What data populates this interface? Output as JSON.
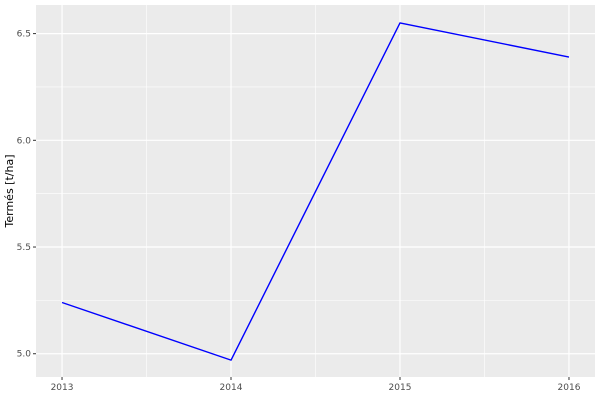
{
  "chart_data": {
    "type": "line",
    "title": "",
    "xlabel": "",
    "ylabel": "Termés [t/ha]",
    "x": [
      2013,
      2014,
      2015,
      2016
    ],
    "series": [
      {
        "name": "Termés",
        "values": [
          5.24,
          4.97,
          6.55,
          6.39
        ]
      }
    ],
    "x_ticks": [
      2013,
      2014,
      2015,
      2016
    ],
    "x_tick_labels": [
      "2013",
      "2014",
      "2015",
      "2016"
    ],
    "y_ticks": [
      5.0,
      5.5,
      6.0,
      6.5
    ],
    "y_tick_labels": [
      "5.0",
      "5.5",
      "6.0",
      "6.5"
    ],
    "x_minor_ticks": [
      2013.5,
      2014.5,
      2015.5
    ],
    "y_minor_ticks": [
      5.25,
      5.75,
      6.25
    ],
    "xlim": [
      2012.846,
      2016.154
    ],
    "ylim": [
      4.891,
      6.634
    ],
    "grid": true,
    "legend": "none",
    "style": "ggplot2-grey",
    "colors": {
      "line": "#0000FF",
      "panel_background": "#EBEBEB",
      "gridline_major": "#FFFFFF",
      "gridline_minor": "#FFFFFF",
      "tick_label": "#4D4D4D",
      "tick_mark": "#333333",
      "axis_title": "#000000",
      "figure_background": "#FFFFFF"
    }
  }
}
